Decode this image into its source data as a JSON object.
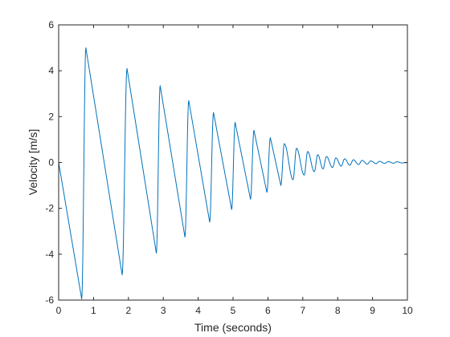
{
  "chart_data": {
    "type": "line",
    "title": "",
    "xlabel": "Time (seconds)",
    "ylabel": "Velocity [m/s]",
    "xlim": [
      0,
      10
    ],
    "ylim": [
      -6,
      6
    ],
    "xticks": [
      0,
      1,
      2,
      3,
      4,
      5,
      6,
      7,
      8,
      9,
      10
    ],
    "yticks": [
      -6,
      -4,
      -2,
      0,
      2,
      4,
      6
    ],
    "grid": false,
    "legend": "none",
    "series": [
      {
        "color": "#0072BD",
        "x": [
          0.0,
          0.66,
          0.78,
          1.82,
          1.96,
          2.8,
          2.91,
          3.62,
          3.73,
          4.33,
          4.44,
          4.96,
          5.06,
          5.5,
          5.6,
          5.97,
          6.07,
          6.37,
          6.47,
          6.72,
          6.82,
          7.04,
          7.14,
          7.33,
          7.43,
          7.58,
          7.68,
          7.85,
          7.95,
          8.1,
          8.2,
          8.35,
          8.45,
          8.6,
          8.7,
          8.85,
          8.95,
          9.1,
          9.2,
          9.35,
          9.45,
          9.6,
          9.7,
          9.85,
          10.0
        ],
        "y": [
          0.0,
          -5.95,
          5.0,
          -4.9,
          4.1,
          -3.95,
          3.35,
          -3.25,
          2.7,
          -2.6,
          2.18,
          -2.05,
          1.75,
          -1.6,
          1.4,
          -1.3,
          1.08,
          -1.0,
          0.82,
          -0.75,
          0.62,
          -0.55,
          0.48,
          -0.4,
          0.34,
          -0.28,
          0.26,
          -0.22,
          0.2,
          -0.16,
          0.16,
          -0.12,
          0.12,
          -0.09,
          0.09,
          -0.07,
          0.07,
          -0.05,
          0.05,
          -0.04,
          0.04,
          -0.03,
          0.03,
          -0.02,
          0.0
        ]
      }
    ]
  }
}
